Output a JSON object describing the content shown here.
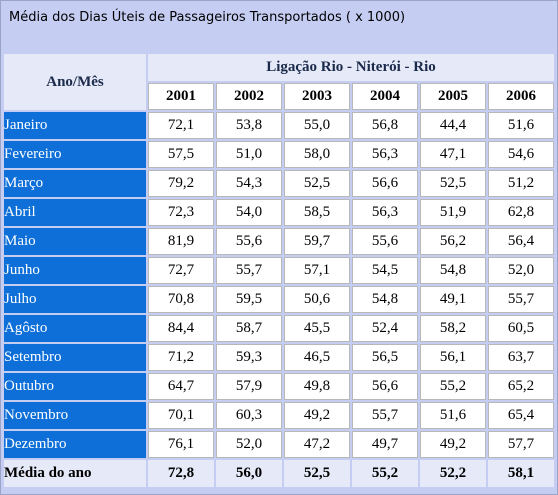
{
  "title": "Média dos Dias Úteis de Passageiros Transportados ( x 1000)",
  "header": {
    "row_label": "Ano/Mês",
    "route": "Ligação Rio - Niterói - Rio",
    "years": [
      "2001",
      "2002",
      "2003",
      "2004",
      "2005",
      "2006"
    ]
  },
  "rows": [
    {
      "month": "Janeiro",
      "values": [
        "72,1",
        "53,8",
        "55,0",
        "56,8",
        "44,4",
        "51,6"
      ]
    },
    {
      "month": "Fevereiro",
      "values": [
        "57,5",
        "51,0",
        "58,0",
        "56,3",
        "47,1",
        "54,6"
      ]
    },
    {
      "month": "Março",
      "values": [
        "79,2",
        "54,3",
        "52,5",
        "56,6",
        "52,5",
        "51,2"
      ]
    },
    {
      "month": "Abril",
      "values": [
        "72,3",
        "54,0",
        "58,5",
        "56,3",
        "51,9",
        "62,8"
      ]
    },
    {
      "month": "Maio",
      "values": [
        "81,9",
        "55,6",
        "59,7",
        "55,6",
        "56,2",
        "56,4"
      ]
    },
    {
      "month": "Junho",
      "values": [
        "72,7",
        "55,7",
        "57,1",
        "54,5",
        "54,8",
        "52,0"
      ]
    },
    {
      "month": "Julho",
      "values": [
        "70,8",
        "59,5",
        "50,6",
        "54,8",
        "49,1",
        "55,7"
      ]
    },
    {
      "month": "Agôsto",
      "values": [
        "84,4",
        "58,7",
        "45,5",
        "52,4",
        "58,2",
        "60,5"
      ]
    },
    {
      "month": "Setembro",
      "values": [
        "71,2",
        "59,3",
        "46,5",
        "56,5",
        "56,1",
        "63,7"
      ]
    },
    {
      "month": "Outubro",
      "values": [
        "64,7",
        "57,9",
        "49,8",
        "56,6",
        "55,2",
        "65,2"
      ]
    },
    {
      "month": "Novembro",
      "values": [
        "70,1",
        "60,3",
        "49,2",
        "55,7",
        "51,6",
        "65,4"
      ]
    },
    {
      "month": "Dezembro",
      "values": [
        "76,1",
        "52,0",
        "47,2",
        "49,7",
        "49,2",
        "57,7"
      ]
    }
  ],
  "average": {
    "label": "Média do ano",
    "values": [
      "72,8",
      "56,0",
      "52,5",
      "55,2",
      "52,2",
      "58,1"
    ]
  },
  "colors": {
    "page_background": "#c6cdf3",
    "month_cell": "#0d6fd7",
    "header_cell": "#e5e9f8"
  }
}
